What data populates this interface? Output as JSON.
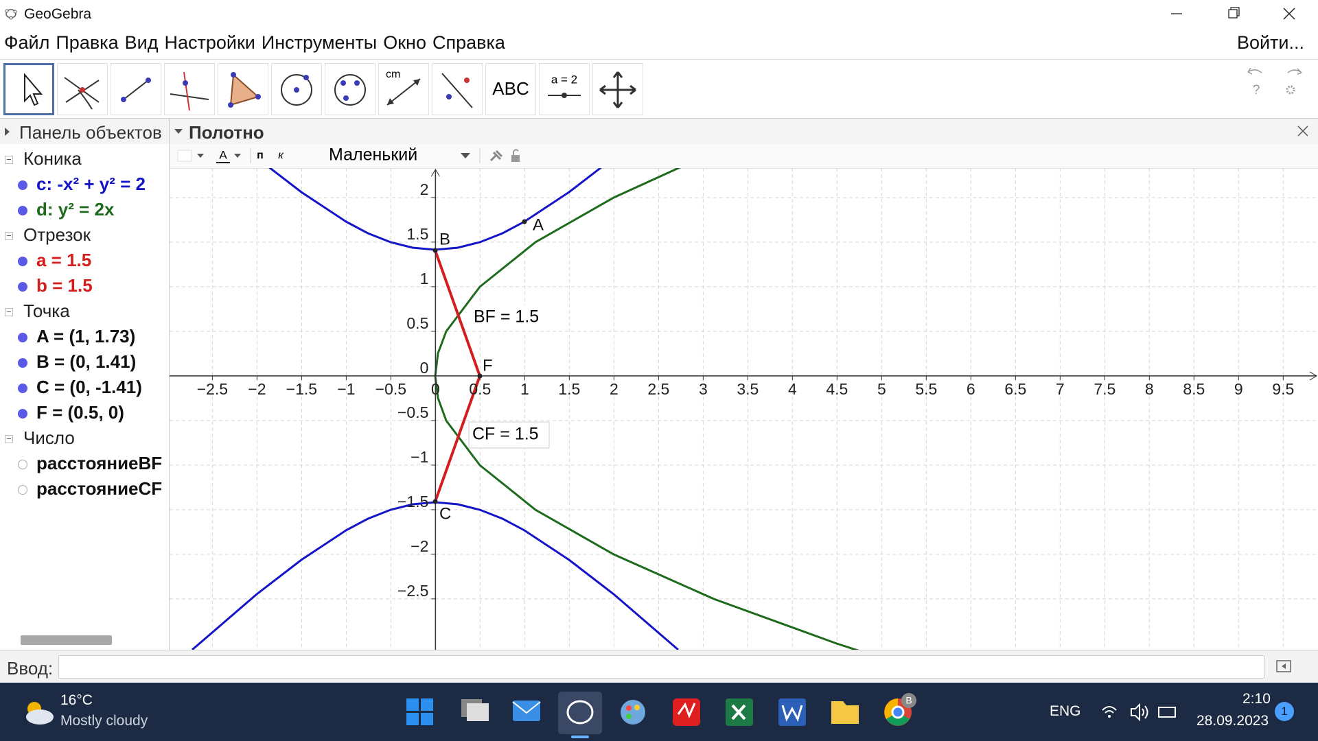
{
  "window": {
    "title": "GeoGebra"
  },
  "menu": {
    "items": [
      "Файл",
      "Правка",
      "Вид",
      "Настройки",
      "Инструменты",
      "Окно",
      "Справка"
    ],
    "login": "Войти..."
  },
  "toolbar": {
    "labels": [
      "cm",
      "ABC",
      "a = 2"
    ],
    "help": "?"
  },
  "panels": {
    "algebra_title": "Панель объектов",
    "graphics_title": "Полотно"
  },
  "style_bar": {
    "text_buttons": [
      "A",
      "п",
      "к"
    ],
    "size": "Маленький"
  },
  "algebra": {
    "groups": [
      {
        "name": "Коника",
        "items": [
          {
            "text": "c: -x² + y² = 2",
            "color": "#1515c8",
            "shown": true
          },
          {
            "text": "d: y² = 2x",
            "color": "#1e6b1e",
            "shown": true
          }
        ]
      },
      {
        "name": "Отрезок",
        "items": [
          {
            "text": "a = 1.5",
            "color": "#d41e1e",
            "shown": true
          },
          {
            "text": "b = 1.5",
            "color": "#d41e1e",
            "shown": true
          }
        ]
      },
      {
        "name": "Точка",
        "items": [
          {
            "text": "A = (1, 1.73)",
            "color": "#111111",
            "shown": true
          },
          {
            "text": "B = (0, 1.41)",
            "color": "#111111",
            "shown": true
          },
          {
            "text": "C = (0, -1.41)",
            "color": "#111111",
            "shown": true
          },
          {
            "text": "F = (0.5, 0)",
            "color": "#111111",
            "shown": true
          }
        ]
      },
      {
        "name": "Число",
        "items": [
          {
            "text": "расстояниеBF",
            "color": "#111111",
            "shown": false
          },
          {
            "text": "расстояниеCF",
            "color": "#111111",
            "shown": false
          }
        ]
      }
    ]
  },
  "graphics": {
    "xlim": [
      -2.98,
      9.89
    ],
    "ylim": [
      -3.07,
      2.33
    ],
    "grid": true,
    "xticks": [
      {
        "value": -2.5,
        "label": "−2.5"
      },
      {
        "value": -2,
        "label": "−2"
      },
      {
        "value": -1.5,
        "label": "−1.5"
      },
      {
        "value": -1,
        "label": "−1"
      },
      {
        "value": -0.5,
        "label": "−0.5"
      },
      0,
      0.5,
      1,
      1.5,
      2,
      2.5,
      3,
      3.5,
      4,
      4.5,
      5,
      5.5,
      6,
      6.5,
      7,
      7.5,
      8,
      8.5,
      9,
      9.5
    ],
    "yticks": [
      2,
      1.5,
      1,
      0.5,
      0,
      {
        "value": -0.5,
        "label": "−0.5"
      },
      {
        "value": -1,
        "label": "−1"
      },
      {
        "value": -1.5,
        "label": "−1.5"
      },
      {
        "value": -2,
        "label": "−2"
      },
      {
        "value": -2.5,
        "label": "−2.5"
      }
    ],
    "point_labels": [
      "A",
      "B",
      "C",
      "F"
    ],
    "captions": [
      "BF = 1.5",
      "CF = 1.5"
    ]
  },
  "input_bar": {
    "label": "Ввод:"
  },
  "taskbar": {
    "temperature": "16°C",
    "weather": "Mostly cloudy",
    "language": "ENG",
    "time": "2:10",
    "date": "28.09.2023",
    "notifications": "1",
    "chrome_badge": "B"
  }
}
